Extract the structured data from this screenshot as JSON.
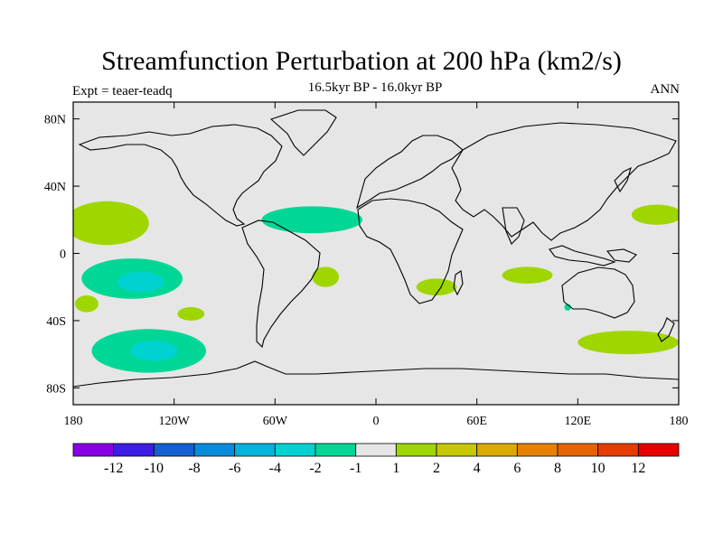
{
  "title": "Streamfunction Perturbation at 200 hPa (km2/s)",
  "subtitle": "16.5kyr BP - 16.0kyr BP",
  "left_label": "Expt = teaer-teadq",
  "right_label": "ANN",
  "map": {
    "background": "#e6e6e6",
    "lon_ticks": [
      {
        "lon": -180,
        "label": "180"
      },
      {
        "lon": -120,
        "label": "120W"
      },
      {
        "lon": -60,
        "label": "60W"
      },
      {
        "lon": 0,
        "label": "0"
      },
      {
        "lon": 60,
        "label": "60E"
      },
      {
        "lon": 120,
        "label": "120E"
      },
      {
        "lon": 180,
        "label": "180"
      }
    ],
    "lat_ticks": [
      {
        "lat": 80,
        "label": "80N"
      },
      {
        "lat": 40,
        "label": "40N"
      },
      {
        "lat": 0,
        "label": "0"
      },
      {
        "lat": -40,
        "label": "40S"
      },
      {
        "lat": -80,
        "label": "80S"
      }
    ],
    "regions": [
      {
        "name": "central-atlantic-negative",
        "level": "-1",
        "lon": -38,
        "lat": 20,
        "rlon": 30,
        "rlat": 8,
        "color": "#00d796"
      },
      {
        "name": "south-pacific-negative",
        "level": "-1",
        "lon": -145,
        "lat": -15,
        "rlon": 30,
        "rlat": 12,
        "color": "#00d796"
      },
      {
        "name": "south-pacific-core",
        "level": "-2",
        "lon": -140,
        "lat": -17,
        "rlon": 14,
        "rlat": 6,
        "color": "#00d2d2"
      },
      {
        "name": "southern-ocean-negative",
        "level": "-1",
        "lon": -135,
        "lat": -58,
        "rlon": 34,
        "rlat": 13,
        "color": "#00d796"
      },
      {
        "name": "southern-ocean-core",
        "level": "-2",
        "lon": -132,
        "lat": -58,
        "rlon": 14,
        "rlat": 6,
        "color": "#00d2d2"
      },
      {
        "name": "australia-negative",
        "level": "-1",
        "lon": 114,
        "lat": -32,
        "rlon": 2,
        "rlat": 2,
        "color": "#00d796"
      },
      {
        "name": "north-pacific-west-positive",
        "level": "1",
        "lon": -160,
        "lat": 18,
        "rlon": 25,
        "rlat": 13,
        "color": "#a0d600"
      },
      {
        "name": "east-pacific-positive",
        "level": "1",
        "lon": -110,
        "lat": -36,
        "rlon": 8,
        "rlat": 4,
        "color": "#a0d600"
      },
      {
        "name": "southwest-pacific-positive",
        "level": "1",
        "lon": -172,
        "lat": -30,
        "rlon": 7,
        "rlat": 5,
        "color": "#a0d600"
      },
      {
        "name": "south-atlantic-positive",
        "level": "1",
        "lon": -30,
        "lat": -14,
        "rlon": 8,
        "rlat": 6,
        "color": "#a0d600"
      },
      {
        "name": "south-africa-positive",
        "level": "1",
        "lon": 36,
        "lat": -20,
        "rlon": 12,
        "rlat": 5,
        "color": "#a0d600"
      },
      {
        "name": "indian-ocean-positive",
        "level": "1",
        "lon": 90,
        "lat": -13,
        "rlon": 15,
        "rlat": 5,
        "color": "#a0d600"
      },
      {
        "name": "west-pacific-positive",
        "level": "1",
        "lon": 167,
        "lat": 23,
        "rlon": 15,
        "rlat": 6,
        "color": "#a0d600"
      },
      {
        "name": "new-zealand-positive",
        "level": "1",
        "lon": 150,
        "lat": -53,
        "rlon": 30,
        "rlat": 7,
        "color": "#a0d600"
      }
    ]
  },
  "colorbar": {
    "colors": [
      "#8a00e6",
      "#3c1ee6",
      "#1460d2",
      "#0a8cdc",
      "#00b4dc",
      "#00d2d2",
      "#00d796",
      "#e6e6e6",
      "#a0d600",
      "#c8c800",
      "#dcaa00",
      "#e68200",
      "#e66400",
      "#e63c00",
      "#e60000"
    ],
    "labels": [
      "-12",
      "-10",
      "-8",
      "-6",
      "-4",
      "-2",
      "-1",
      "1",
      "2",
      "4",
      "6",
      "8",
      "10",
      "12"
    ]
  }
}
